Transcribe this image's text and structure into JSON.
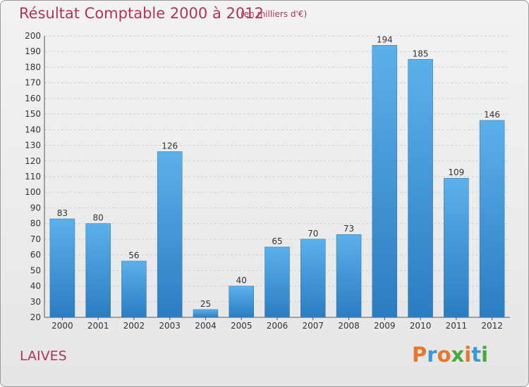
{
  "header": {
    "title": "Résultat Comptable 2000 à 2012",
    "subtitle": "(en milliers d'€)"
  },
  "footer": {
    "place": "LAIVES",
    "brand": "Proxiti",
    "brand_colors": [
      "#e8772e",
      "#3a9ad9",
      "#e8772e",
      "#4aa83c",
      "#e8772e",
      "#3a9ad9",
      "#4aa83c"
    ]
  },
  "chart_data": {
    "type": "bar",
    "title": "Résultat Comptable 2000 à 2012",
    "subtitle": "(en milliers d'€)",
    "xlabel": "",
    "ylabel": "",
    "categories": [
      "2000",
      "2001",
      "2002",
      "2003",
      "2004",
      "2005",
      "2006",
      "2007",
      "2008",
      "2009",
      "2010",
      "2011",
      "2012"
    ],
    "values": [
      83,
      80,
      56,
      126,
      25,
      40,
      65,
      70,
      73,
      194,
      185,
      109,
      146
    ],
    "ylim": [
      20,
      200
    ],
    "ytick_step": 10,
    "grid": "horizontal-dashed",
    "legend": "none",
    "bar_color": "#4a9fe0",
    "bar_color_dark": "#2a7ec4"
  }
}
